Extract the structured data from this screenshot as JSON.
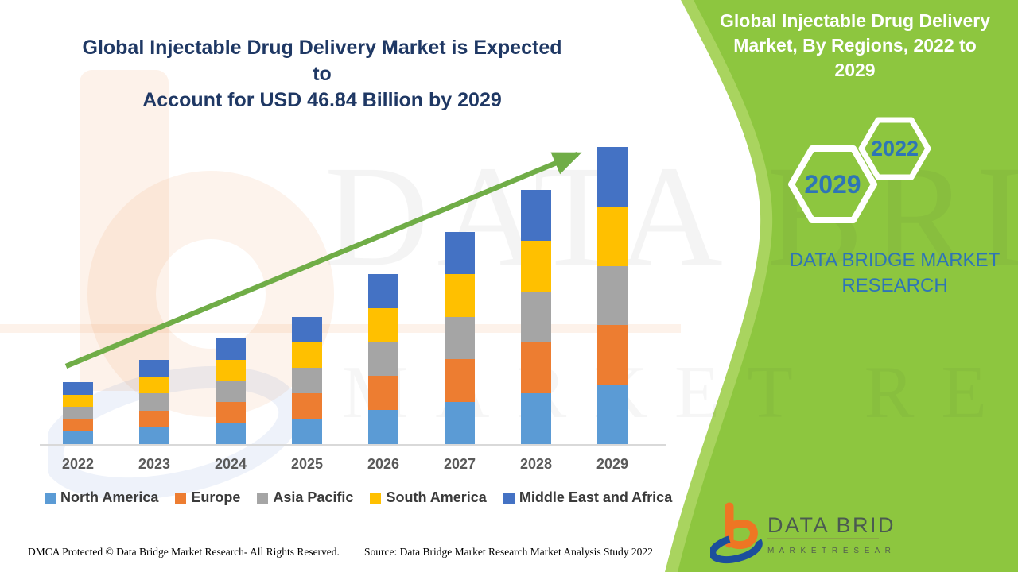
{
  "header": {
    "main_title_line1": "Global Injectable Drug Delivery Market is Expected to",
    "main_title_line2": "Account for USD 46.84 Billion by 2029"
  },
  "side_panel": {
    "title_line1": "Global Injectable Drug Delivery",
    "title_line2": "Market, By Regions, 2022 to 2029",
    "hexagon_back_label": "2029",
    "hexagon_front_label": "2022",
    "brand_line1": "DATA BRIDGE MARKET",
    "brand_line2": "RESEARCH"
  },
  "chart_data": {
    "type": "bar",
    "stacked": true,
    "title": "Global Injectable Drug Delivery Market is Expected to Account for USD 46.84 Billion by 2029",
    "xlabel": "",
    "ylabel": "",
    "unit": "USD Billion",
    "ylim": [
      0,
      50
    ],
    "grid": false,
    "legend_position": "bottom",
    "categories": [
      "2022",
      "2023",
      "2024",
      "2025",
      "2026",
      "2027",
      "2028",
      "2029"
    ],
    "series": [
      {
        "name": "North America",
        "color": "#5B9BD5",
        "values": [
          1.95,
          2.66,
          3.33,
          4.02,
          5.36,
          6.69,
          8.02,
          9.37
        ]
      },
      {
        "name": "Europe",
        "color": "#ED7D31",
        "values": [
          1.95,
          2.66,
          3.33,
          4.02,
          5.36,
          6.69,
          8.02,
          9.37
        ]
      },
      {
        "name": "Asia Pacific",
        "color": "#A5A5A5",
        "values": [
          1.95,
          2.66,
          3.33,
          4.02,
          5.36,
          6.69,
          8.02,
          9.37
        ]
      },
      {
        "name": "South America",
        "color": "#FFC000",
        "values": [
          1.95,
          2.66,
          3.33,
          4.02,
          5.36,
          6.69,
          8.02,
          9.37
        ]
      },
      {
        "name": "Middle East and Africa",
        "color": "#4472C4",
        "values": [
          1.95,
          2.66,
          3.33,
          4.02,
          5.36,
          6.69,
          8.02,
          9.37
        ]
      }
    ],
    "estimated_totals_usd_billion": [
      9.75,
      13.3,
      16.65,
      20.1,
      26.8,
      33.45,
      40.1,
      46.84
    ],
    "trend_arrow": true
  },
  "watermark": {
    "line1": "DATA BRIDGE",
    "line2": "MARKET RESEARCH"
  },
  "logo": {
    "name": "DATA BRIDGE",
    "tagline": "M A R K E T   R E S E A R C H"
  },
  "footer": {
    "dmca": "DMCA Protected © Data Bridge Market Research- All Rights Reserved.",
    "source": "Source: Data Bridge Market Research Market Analysis Study 2022"
  },
  "colors": {
    "panel_green": "#8DC63F",
    "panel_green_light": "#A9D45F",
    "arrow_green": "#70AD47",
    "title_navy": "#1F3864",
    "accent_blue": "#2E75B6",
    "axis_gray": "#D9D9D9",
    "logo_orange": "#EE7623",
    "logo_blue": "#1C4F9C"
  }
}
